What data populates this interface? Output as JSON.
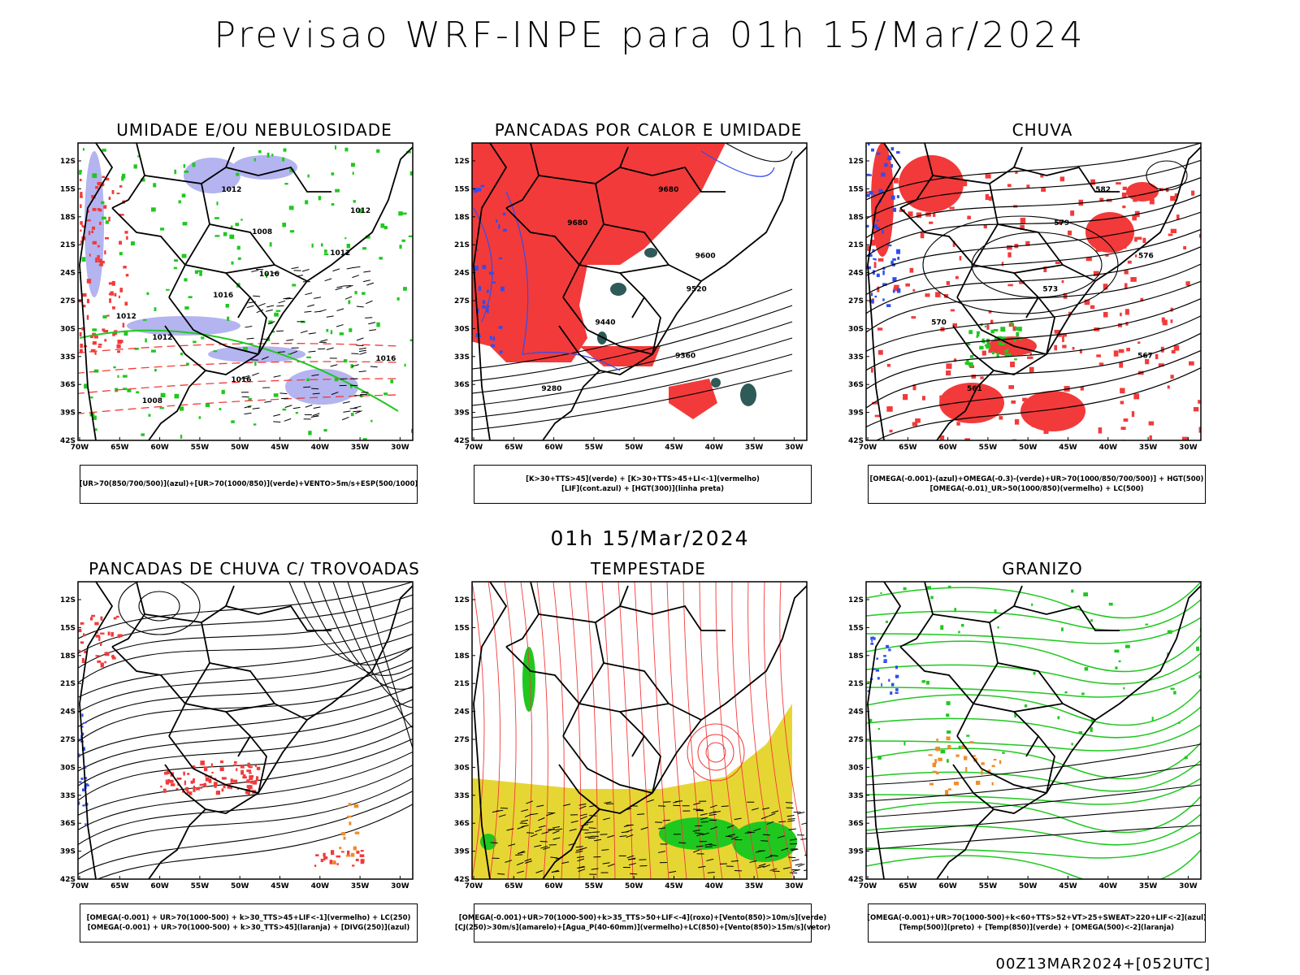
{
  "main_title": "Previsao WRF-INPE  para 01h 15/Mar/2024",
  "mid_title": "01h 15/Mar/2024",
  "footer": "00Z13MAR2024+[052UTC]",
  "lat_ticks": [
    "12S",
    "15S",
    "18S",
    "21S",
    "24S",
    "27S",
    "30S",
    "33S",
    "36S",
    "39S",
    "42S"
  ],
  "lon_ticks": [
    "70W",
    "65W",
    "60W",
    "55W",
    "50W",
    "45W",
    "40W",
    "35W",
    "30W"
  ],
  "panels": [
    {
      "title": "UMIDADE E/OU NEBULOSIDADE",
      "caption_lines": [
        "[UR>70(850/700/500)](azul)+[UR>70(1000/850)](verde)+VENTO>5m/s+ESP(500/1000)"
      ]
    },
    {
      "title": "PANCADAS POR CALOR E UMIDADE",
      "caption_lines": [
        "[K>30+TTS>45](verde) + [K>30+TTS>45+LI<-1](vermelho)",
        "[LIF](cont.azul) + [HGT(300)](linha preta)"
      ]
    },
    {
      "title": "CHUVA",
      "caption_lines": [
        "[OMEGA(-0.001)-(azul)+OMEGA(-0.3)-(verde)+UR>70(1000/850/700/500)] + HGT(500)",
        "[OMEGA(-0.01)_UR>50(1000/850)(vermelho) + LC(500)"
      ]
    },
    {
      "title": "PANCADAS DE CHUVA C/ TROVOADAS",
      "caption_lines": [
        "[OMEGA(-0.001) + UR>70(1000-500) + k>30_TTS>45+LIF<-1](vermelho) + LC(250)",
        "[OMEGA(-0.001) + UR>70(1000-500) + k>30_TTS>45](laranja) + [DIVG(250)](azul)"
      ]
    },
    {
      "title": "TEMPESTADE",
      "caption_lines": [
        "[OMEGA(-0.001)+UR>70(1000-500)+k>35_TTS>50+LIF<-4](roxo)+[Vento(850)>10m/s](verde)",
        "[CJ(250)>30m/s](amarelo)+[Agua_P(40-60mm)](vermelho)+LC(850)+[Vento(850)>15m/s](vetor)"
      ]
    },
    {
      "title": "GRANIZO",
      "caption_lines": [
        "[OMEGA(-0.001)+UR>70(1000-500)+k<60+TTS>52+VT>25+SWEAT>220+LIF<-2](azul)",
        "[Temp(500)](preto) + [Temp(850)](verde) + [OMEGA(500)<-2](laranja)"
      ]
    }
  ],
  "colors": {
    "red": "#f23a3a",
    "green": "#1fc81f",
    "blue": "#2f4df0",
    "lavender": "#b4b4f0",
    "yellow": "#e6d634",
    "darkteal": "#2e5a58",
    "orange": "#f08c28"
  },
  "contour_labels": {
    "p1": [
      "1012",
      "1012",
      "1008",
      "1012",
      "1016",
      "1016",
      "1012",
      "1012",
      "1016",
      "1016",
      "1008"
    ],
    "p2": [
      "9680",
      "9680",
      "9600",
      "9520",
      "9440",
      "9360",
      "9280"
    ],
    "p3": [
      "582",
      "579",
      "576",
      "573",
      "570",
      "567",
      "561"
    ]
  }
}
